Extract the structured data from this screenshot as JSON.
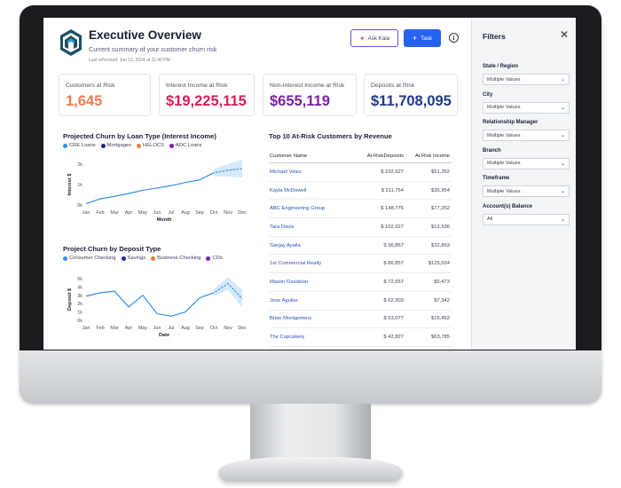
{
  "header": {
    "title": "Executive Overview",
    "subtitle": "Current summary of your customer churn risk",
    "last_refreshed": "Last refreshed: Jun 12, 2024 at 11:40 PM",
    "ask_button": "Ask Kaia",
    "task_button": "Task",
    "info_icon": "i"
  },
  "kpis": [
    {
      "label": "Customers at Risk",
      "value": "1,645",
      "color": "#f07a4e"
    },
    {
      "label": "Interest Income at Risk",
      "value": "$19,225,115",
      "color": "#d41f56"
    },
    {
      "label": "Non-Interest Income at Risk",
      "value": "$655,119",
      "color": "#7a1fa8"
    },
    {
      "label": "Deposits at Risk",
      "value": "$11,708,095",
      "color": "#213a8f"
    }
  ],
  "chart_data": [
    {
      "type": "line",
      "title": "Projected Churn by Loan Type (Interest Income)",
      "legend": [
        {
          "name": "CRE Loans",
          "color": "#2f8fe8"
        },
        {
          "name": "Mortgages",
          "color": "#22288c"
        },
        {
          "name": "HELOCS",
          "color": "#ef7c3b"
        },
        {
          "name": "ADC Loans",
          "color": "#7a1fa8"
        }
      ],
      "xlabel": "Month",
      "ylabel": "Interest $",
      "categories": [
        "Jan",
        "Feb",
        "Mar",
        "Apr",
        "May",
        "Jun",
        "Jul",
        "Aug",
        "Sep",
        "Oct",
        "Nov",
        "Dec"
      ],
      "yticks": [
        "0k",
        "1k",
        "2k"
      ],
      "ylim": [
        0,
        2000
      ],
      "series": [
        {
          "name": "CRE Loans",
          "color": "#2f8fe8",
          "values": [
            60,
            300,
            420,
            560,
            720,
            830,
            950,
            1100,
            1230,
            1580,
            1700,
            1780
          ]
        }
      ],
      "forecast_band_from": "Oct"
    },
    {
      "type": "line",
      "title": "Project Churn by Deposit Type",
      "legend": [
        {
          "name": "Consumer Checking",
          "color": "#2f8fe8"
        },
        {
          "name": "Savings",
          "color": "#22288c"
        },
        {
          "name": "Business Checking",
          "color": "#ef7c3b"
        },
        {
          "name": "CDs",
          "color": "#7a1fa8"
        }
      ],
      "xlabel": "Date",
      "ylabel": "Deposit $",
      "categories": [
        "Jan",
        "Feb",
        "Mar",
        "Apr",
        "May",
        "Jun",
        "Jul",
        "Aug",
        "Sep",
        "Oct",
        "Nov",
        "Dec"
      ],
      "yticks": [
        "0k",
        "1k",
        "2k",
        "3k",
        "4k",
        "5k"
      ],
      "ylim": [
        0,
        5000
      ],
      "series": [
        {
          "name": "Consumer Checking",
          "color": "#2f8fe8",
          "values": [
            2900,
            3300,
            3500,
            1600,
            3000,
            800,
            500,
            1000,
            2700,
            3300,
            4400,
            2600
          ]
        }
      ],
      "forecast_band_from": "Oct"
    }
  ],
  "table": {
    "title": "Top 10 At-Risk Customers by Revenue",
    "columns": [
      "Customer Name",
      "At-RiskDeposits",
      "At Risk Income"
    ],
    "rows": [
      [
        "Michael Velez",
        "$ 232,627",
        "$51,252"
      ],
      [
        "Kayla McDowell",
        "$ 211,754",
        "$35,954"
      ],
      [
        "ABC Engineering Group",
        "$ 148,776",
        "$77,252"
      ],
      [
        "Tara Davis",
        "$ 102,627",
        "$12,536"
      ],
      [
        "Sanjay Ayalla",
        "$ 96,857",
        "$32,893"
      ],
      [
        "1st Commercial Realty",
        "$ 86,857",
        "$125,024"
      ],
      [
        "Mason Davidson",
        "$ 72,657",
        "$5,473"
      ],
      [
        "Jose Aguilar",
        "$ 62,903",
        "$7,342"
      ],
      [
        "Brian Montgomery",
        "$ 53,077",
        "$15,452"
      ],
      [
        "The Cupcakery",
        "$ 42,827",
        "$63,785"
      ]
    ]
  },
  "filters": {
    "title": "Filters",
    "close_icon": "✕",
    "items": [
      {
        "label": "State / Region",
        "value": "Multiple Values"
      },
      {
        "label": "City",
        "value": "Multiple Values"
      },
      {
        "label": "Relationship Manager",
        "value": "Multiple Values"
      },
      {
        "label": "Branch",
        "value": "Multiple Values"
      },
      {
        "label": "Timeframe",
        "value": "Multiple Values"
      },
      {
        "label": "Account(s) Balance",
        "value": "All"
      }
    ]
  }
}
